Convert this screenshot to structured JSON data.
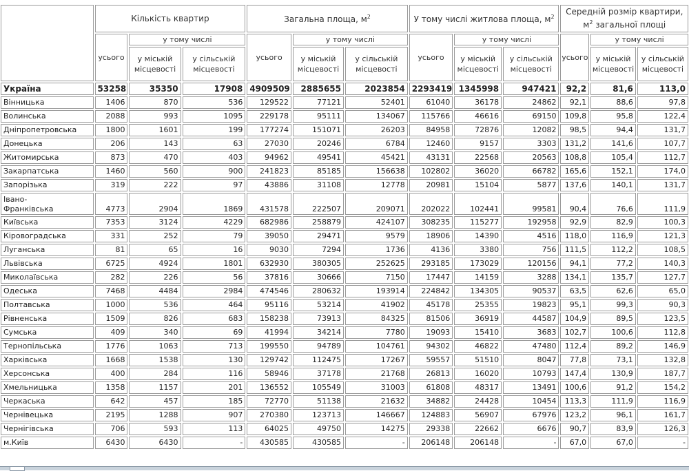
{
  "header": {
    "count": "Кількість квартир",
    "total_area": "Загальна площа, м",
    "living_area": "У тому числі житлова площа, м",
    "avg_size_line1": "Середній розмір квартири,",
    "avg_size_line2": "загальної площі",
    "sup": "2",
    "incl": "у тому числі",
    "all": "усього",
    "urban": "у міській місцевості",
    "rural": "у сільській місцевості"
  },
  "rows": [
    [
      "Україна",
      "53258",
      "35350",
      "17908",
      "4909509",
      "2885655",
      "2023854",
      "2293419",
      "1345998",
      "947421",
      "92,2",
      "81,6",
      "113,0"
    ],
    [
      "Вінницька",
      "1406",
      "870",
      "536",
      "129522",
      "77121",
      "52401",
      "61040",
      "36178",
      "24862",
      "92,1",
      "88,6",
      "97,8"
    ],
    [
      "Волинська",
      "2088",
      "993",
      "1095",
      "229178",
      "95111",
      "134067",
      "115766",
      "46616",
      "69150",
      "109,8",
      "95,8",
      "122,4"
    ],
    [
      "Дніпропетровська",
      "1800",
      "1601",
      "199",
      "177274",
      "151071",
      "26203",
      "84958",
      "72876",
      "12082",
      "98,5",
      "94,4",
      "131,7"
    ],
    [
      "Донецька",
      "206",
      "143",
      "63",
      "27030",
      "20246",
      "6784",
      "12460",
      "9157",
      "3303",
      "131,2",
      "141,6",
      "107,7"
    ],
    [
      "Житомирська",
      "873",
      "470",
      "403",
      "94962",
      "49541",
      "45421",
      "43131",
      "22568",
      "20563",
      "108,8",
      "105,4",
      "112,7"
    ],
    [
      "Закарпатська",
      "1460",
      "560",
      "900",
      "241823",
      "85185",
      "156638",
      "102802",
      "36020",
      "66782",
      "165,6",
      "152,1",
      "174,0"
    ],
    [
      "Запорізька",
      "319",
      "222",
      "97",
      "43886",
      "31108",
      "12778",
      "20981",
      "15104",
      "5877",
      "137,6",
      "140,1",
      "131,7"
    ],
    [
      "Івано-Франківська",
      "4773",
      "2904",
      "1869",
      "431578",
      "222507",
      "209071",
      "202022",
      "102441",
      "99581",
      "90,4",
      "76,6",
      "111,9"
    ],
    [
      "Київська",
      "7353",
      "3124",
      "4229",
      "682986",
      "258879",
      "424107",
      "308235",
      "115277",
      "192958",
      "92,9",
      "82,9",
      "100,3"
    ],
    [
      "Кіровоградська",
      "331",
      "252",
      "79",
      "39050",
      "29471",
      "9579",
      "18906",
      "14390",
      "4516",
      "118,0",
      "116,9",
      "121,3"
    ],
    [
      "Луганська",
      "81",
      "65",
      "16",
      "9030",
      "7294",
      "1736",
      "4136",
      "3380",
      "756",
      "111,5",
      "112,2",
      "108,5"
    ],
    [
      "Львівська",
      "6725",
      "4924",
      "1801",
      "632930",
      "380305",
      "252625",
      "293185",
      "173029",
      "120156",
      "94,1",
      "77,2",
      "140,3"
    ],
    [
      "Миколаївська",
      "282",
      "226",
      "56",
      "37816",
      "30666",
      "7150",
      "17447",
      "14159",
      "3288",
      "134,1",
      "135,7",
      "127,7"
    ],
    [
      "Одеська",
      "7468",
      "4484",
      "2984",
      "474546",
      "280632",
      "193914",
      "224842",
      "134305",
      "90537",
      "63,5",
      "62,6",
      "65,0"
    ],
    [
      "Полтавська",
      "1000",
      "536",
      "464",
      "95116",
      "53214",
      "41902",
      "45178",
      "25355",
      "19823",
      "95,1",
      "99,3",
      "90,3"
    ],
    [
      "Рівненська",
      "1509",
      "826",
      "683",
      "158238",
      "73913",
      "84325",
      "81506",
      "36919",
      "44587",
      "104,9",
      "89,5",
      "123,5"
    ],
    [
      "Сумська",
      "409",
      "340",
      "69",
      "41994",
      "34214",
      "7780",
      "19093",
      "15410",
      "3683",
      "102,7",
      "100,6",
      "112,8"
    ],
    [
      "Тернопільська",
      "1776",
      "1063",
      "713",
      "199550",
      "94789",
      "104761",
      "94302",
      "46822",
      "47480",
      "112,4",
      "89,2",
      "146,9"
    ],
    [
      "Харківська",
      "1668",
      "1538",
      "130",
      "129742",
      "112475",
      "17267",
      "59557",
      "51510",
      "8047",
      "77,8",
      "73,1",
      "132,8"
    ],
    [
      "Херсонська",
      "400",
      "284",
      "116",
      "58946",
      "37178",
      "21768",
      "26813",
      "16020",
      "10793",
      "147,4",
      "130,9",
      "187,7"
    ],
    [
      "Хмельницька",
      "1358",
      "1157",
      "201",
      "136552",
      "105549",
      "31003",
      "61808",
      "48317",
      "13491",
      "100,6",
      "91,2",
      "154,2"
    ],
    [
      "Черкаська",
      "642",
      "457",
      "185",
      "72770",
      "51138",
      "21632",
      "34882",
      "24428",
      "10454",
      "113,3",
      "111,9",
      "116,9"
    ],
    [
      "Чернівецька",
      "2195",
      "1288",
      "907",
      "270380",
      "123713",
      "146667",
      "124883",
      "56907",
      "67976",
      "123,2",
      "96,1",
      "161,7"
    ],
    [
      "Чернігівська",
      "706",
      "593",
      "113",
      "64025",
      "49750",
      "14275",
      "29338",
      "22662",
      "6676",
      "90,7",
      "83,9",
      "126,3"
    ],
    [
      "м.Київ",
      "6430",
      "6430",
      "-",
      "430585",
      "430585",
      "-",
      "206148",
      "206148",
      "-",
      "67,0",
      "67,0",
      "-"
    ]
  ]
}
